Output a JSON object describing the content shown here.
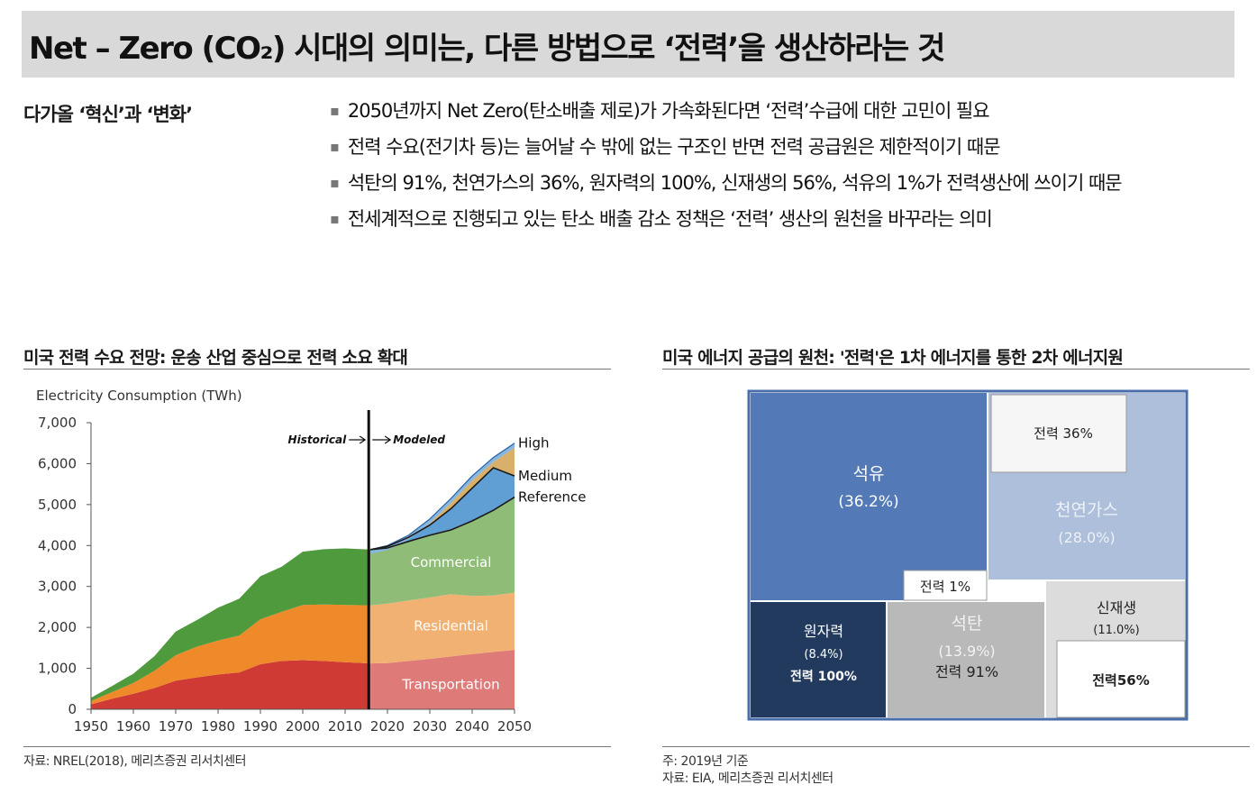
{
  "header": {
    "title": "Net – Zero (CO₂) 시대의 의미는, 다른 방법으로 ‘전력’을 생산하라는 것"
  },
  "intro": {
    "caption": "다가올 ‘혁신’과 ‘변화’",
    "bullets": [
      "2050년까지 Net Zero(탄소배출 제로)가 가속화된다면 ‘전력’수급에 대한 고민이 필요",
      "전력 수요(전기차 등)는 늘어날 수 밖에 없는 구조인 반면 전력 공급원은 제한적이기 때문",
      "석탄의 91%, 천연가스의 36%, 원자력의 100%, 신재생의 56%, 석유의 1%가 전력생산에 쓰이기 때문",
      "전세계적으로 진행되고 있는 탄소 배출 감소 정책은 ‘전력’ 생산의 원천을 바꾸라는 의미"
    ]
  },
  "left_section": {
    "title": "미국 전력 수요 전망: 운송 산업 중심으로 전력 소요 확대",
    "source": "자료: NREL(2018), 메리츠증권 리서치센터"
  },
  "right_section": {
    "title": "미국 에너지 공급의 원천: '전력'은 1차 에너지를 통한 2차 에너지원",
    "note": "주: 2019년 기준",
    "source": "자료: EIA, 메리츠증권 리서치센터"
  },
  "colors": {
    "transportation": "#cf3b34",
    "transportation_model": "#de7a77",
    "residential": "#ee8a2a",
    "residential_model": "#f1b173",
    "commercial": "#4f9a3d",
    "commercial_model": "#8fbd78",
    "ref_medium": "#5f9fd4",
    "medium_high": "#85b7e3",
    "band": "#d9b06a",
    "oil": "#5379b7",
    "gas": "#aebfdc",
    "nuclear": "#213a5e",
    "coal": "#b9b9b9",
    "renew": "#dcdcdc"
  },
  "chart_data": [
    {
      "type": "area",
      "ylabel": "Electricity Consumption (TWh)",
      "xlim": [
        1950,
        2050
      ],
      "ylim": [
        0,
        7000
      ],
      "xticks": [
        "1950",
        "1960",
        "1970",
        "1980",
        "1990",
        "2000",
        "2010",
        "2020",
        "2030",
        "2040",
        "2050"
      ],
      "yticks": [
        "0",
        "1,000",
        "2,000",
        "3,000",
        "4,000",
        "5,000",
        "6,000",
        "7,000"
      ],
      "divider_year": 2016,
      "divider_labels": [
        "Historical",
        "Modeled"
      ],
      "x": [
        1950,
        1955,
        1960,
        1965,
        1970,
        1975,
        1980,
        1985,
        1990,
        1995,
        2000,
        2005,
        2010,
        2016,
        2020,
        2025,
        2030,
        2035,
        2040,
        2045,
        2050
      ],
      "series": [
        {
          "name": "Transportation",
          "values": [
            120,
            260,
            380,
            520,
            700,
            780,
            850,
            900,
            1100,
            1180,
            1200,
            1180,
            1150,
            1120,
            1130,
            1180,
            1230,
            1290,
            1350,
            1400,
            1450
          ]
        },
        {
          "name": "Residential",
          "values": [
            80,
            160,
            260,
            420,
            620,
            750,
            830,
            900,
            1100,
            1200,
            1350,
            1380,
            1400,
            1420,
            1450,
            1480,
            1500,
            1520,
            1420,
            1380,
            1400
          ]
        },
        {
          "name": "Commercial",
          "values": [
            80,
            150,
            230,
            360,
            580,
            650,
            800,
            900,
            1050,
            1100,
            1300,
            1350,
            1380,
            1360,
            1360,
            1440,
            1520,
            1570,
            1830,
            2080,
            2330
          ]
        },
        {
          "name": "Reference",
          "values": [
            null,
            null,
            null,
            null,
            null,
            null,
            null,
            null,
            null,
            null,
            null,
            null,
            null,
            3900,
            3940,
            4100,
            4250,
            4380,
            4600,
            4860,
            5180
          ]
        },
        {
          "name": "Medium",
          "values": [
            null,
            null,
            null,
            null,
            null,
            null,
            null,
            null,
            null,
            null,
            null,
            null,
            null,
            3900,
            3980,
            4200,
            4500,
            4900,
            5400,
            5900,
            5700
          ]
        },
        {
          "name": "High",
          "values": [
            null,
            null,
            null,
            null,
            null,
            null,
            null,
            null,
            null,
            null,
            null,
            null,
            null,
            3900,
            4000,
            4250,
            4650,
            5150,
            5700,
            6150,
            6500
          ]
        }
      ],
      "area_labels": [
        "Transportation",
        "Residential",
        "Commercial"
      ],
      "line_labels": [
        "High",
        "Medium",
        "Reference"
      ]
    },
    {
      "type": "treemap",
      "items": [
        {
          "name": "석유",
          "share": "(36.2%)",
          "electric": "전력 1%"
        },
        {
          "name": "천연가스",
          "share": "(28.0%)",
          "electric": "전력 36%"
        },
        {
          "name": "원자력",
          "share": "(8.4%)",
          "electric": "전력 100%"
        },
        {
          "name": "석탄",
          "share": "(13.9%)",
          "electric": "전력 91%"
        },
        {
          "name": "신재생",
          "share": "(11.0%)",
          "electric": "전력56%"
        }
      ]
    }
  ]
}
